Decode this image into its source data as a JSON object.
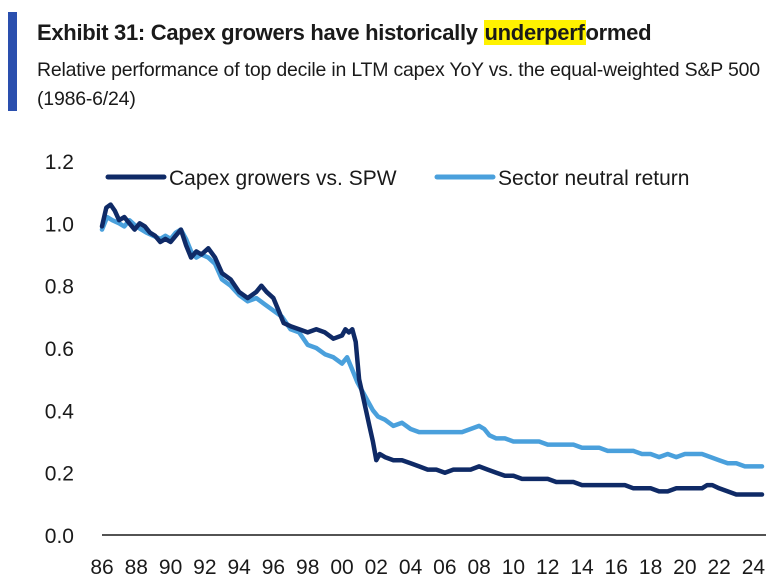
{
  "header": {
    "title_prefix": "Exhibit 31: Capex growers have historically ",
    "title_highlight": "underperf",
    "title_suffix": "ormed",
    "subtitle": "Relative performance of top decile in LTM capex YoY vs. the equal-weighted S&P 500 (1986-6/24)"
  },
  "colors": {
    "accent": "#2a4fae",
    "highlight": "#fff200",
    "series_dark": "#0f2a66",
    "series_light": "#4aa0dc"
  },
  "chart_data": {
    "type": "line",
    "title": "",
    "xlabel": "",
    "ylabel": "",
    "xlim": [
      1986,
      2024.5
    ],
    "ylim": [
      0.0,
      1.2
    ],
    "grid": false,
    "legend": "top",
    "yticks": [
      {
        "value": 0.0,
        "label": "0.0"
      },
      {
        "value": 0.2,
        "label": "0.2"
      },
      {
        "value": 0.4,
        "label": "0.4"
      },
      {
        "value": 0.6,
        "label": "0.6"
      },
      {
        "value": 0.8,
        "label": "0.8"
      },
      {
        "value": 1.0,
        "label": "1.0"
      },
      {
        "value": 1.2,
        "label": "1.2"
      }
    ],
    "xticks": [
      {
        "value": 1986,
        "label": "86"
      },
      {
        "value": 1988,
        "label": "88"
      },
      {
        "value": 1990,
        "label": "90"
      },
      {
        "value": 1992,
        "label": "92"
      },
      {
        "value": 1994,
        "label": "94"
      },
      {
        "value": 1996,
        "label": "96"
      },
      {
        "value": 1998,
        "label": "98"
      },
      {
        "value": 2000,
        "label": "00"
      },
      {
        "value": 2002,
        "label": "02"
      },
      {
        "value": 2004,
        "label": "04"
      },
      {
        "value": 2006,
        "label": "06"
      },
      {
        "value": 2008,
        "label": "08"
      },
      {
        "value": 2010,
        "label": "10"
      },
      {
        "value": 2012,
        "label": "12"
      },
      {
        "value": 2014,
        "label": "14"
      },
      {
        "value": 2016,
        "label": "16"
      },
      {
        "value": 2018,
        "label": "18"
      },
      {
        "value": 2020,
        "label": "20"
      },
      {
        "value": 2022,
        "label": "22"
      },
      {
        "value": 2024,
        "label": "24"
      }
    ],
    "series": [
      {
        "name": "Capex growers vs. SPW",
        "color": "#0f2a66",
        "x": [
          1986.0,
          1986.25,
          1986.5,
          1986.75,
          1987.0,
          1987.3,
          1987.6,
          1987.9,
          1988.2,
          1988.5,
          1988.8,
          1989.1,
          1989.4,
          1989.7,
          1990.0,
          1990.3,
          1990.6,
          1990.9,
          1991.2,
          1991.5,
          1991.8,
          1992.2,
          1992.6,
          1993.0,
          1993.5,
          1994.0,
          1994.5,
          1995.0,
          1995.3,
          1995.6,
          1996.0,
          1996.3,
          1996.6,
          1997.0,
          1997.5,
          1998.0,
          1998.5,
          1999.0,
          1999.5,
          2000.0,
          2000.2,
          2000.4,
          2000.6,
          2000.8,
          2001.0,
          2001.2,
          2001.4,
          2001.6,
          2001.8,
          2002.0,
          2002.2,
          2002.5,
          2003.0,
          2003.5,
          2004.0,
          2004.5,
          2005.0,
          2005.5,
          2006.0,
          2006.5,
          2007.0,
          2007.5,
          2008.0,
          2008.5,
          2009.0,
          2009.5,
          2010.0,
          2010.5,
          2011.0,
          2011.5,
          2012.0,
          2012.5,
          2013.0,
          2013.5,
          2014.0,
          2014.5,
          2015.0,
          2015.5,
          2016.0,
          2016.5,
          2017.0,
          2017.5,
          2018.0,
          2018.5,
          2019.0,
          2019.5,
          2020.0,
          2020.5,
          2021.0,
          2021.3,
          2021.6,
          2022.0,
          2022.5,
          2023.0,
          2023.5,
          2024.0,
          2024.5
        ],
        "values": [
          0.99,
          1.05,
          1.06,
          1.04,
          1.01,
          1.02,
          1.0,
          0.98,
          1.0,
          0.99,
          0.97,
          0.96,
          0.94,
          0.95,
          0.94,
          0.96,
          0.98,
          0.93,
          0.89,
          0.91,
          0.9,
          0.92,
          0.89,
          0.84,
          0.82,
          0.78,
          0.76,
          0.78,
          0.8,
          0.78,
          0.76,
          0.72,
          0.68,
          0.67,
          0.66,
          0.65,
          0.66,
          0.65,
          0.63,
          0.64,
          0.66,
          0.65,
          0.66,
          0.62,
          0.5,
          0.45,
          0.4,
          0.35,
          0.3,
          0.24,
          0.26,
          0.25,
          0.24,
          0.24,
          0.23,
          0.22,
          0.21,
          0.21,
          0.2,
          0.21,
          0.21,
          0.21,
          0.22,
          0.21,
          0.2,
          0.19,
          0.19,
          0.18,
          0.18,
          0.18,
          0.18,
          0.17,
          0.17,
          0.17,
          0.16,
          0.16,
          0.16,
          0.16,
          0.16,
          0.16,
          0.15,
          0.15,
          0.15,
          0.14,
          0.14,
          0.15,
          0.15,
          0.15,
          0.15,
          0.16,
          0.16,
          0.15,
          0.14,
          0.13,
          0.13,
          0.13,
          0.13
        ]
      },
      {
        "name": "Sector neutral return",
        "color": "#4aa0dc",
        "x": [
          1986.0,
          1986.3,
          1986.6,
          1987.0,
          1987.3,
          1987.6,
          1988.0,
          1988.3,
          1988.6,
          1989.0,
          1989.4,
          1989.7,
          1990.0,
          1990.3,
          1990.6,
          1990.9,
          1991.2,
          1991.5,
          1991.8,
          1992.2,
          1992.6,
          1993.0,
          1993.5,
          1994.0,
          1994.5,
          1995.0,
          1995.5,
          1996.0,
          1996.5,
          1997.0,
          1997.5,
          1998.0,
          1998.5,
          1999.0,
          1999.5,
          2000.0,
          2000.3,
          2000.6,
          2000.9,
          2001.2,
          2001.5,
          2001.8,
          2002.1,
          2002.5,
          2003.0,
          2003.5,
          2004.0,
          2004.5,
          2005.0,
          2005.5,
          2006.0,
          2006.5,
          2007.0,
          2007.5,
          2008.0,
          2008.3,
          2008.6,
          2009.0,
          2009.5,
          2010.0,
          2010.5,
          2011.0,
          2011.5,
          2012.0,
          2012.5,
          2013.0,
          2013.5,
          2014.0,
          2014.5,
          2015.0,
          2015.5,
          2016.0,
          2016.5,
          2017.0,
          2017.5,
          2018.0,
          2018.5,
          2019.0,
          2019.5,
          2020.0,
          2020.5,
          2021.0,
          2021.5,
          2022.0,
          2022.5,
          2023.0,
          2023.5,
          2024.0,
          2024.5
        ],
        "values": [
          0.98,
          1.02,
          1.01,
          1.0,
          0.99,
          1.01,
          0.99,
          0.98,
          0.97,
          0.96,
          0.95,
          0.96,
          0.95,
          0.97,
          0.98,
          0.95,
          0.91,
          0.89,
          0.9,
          0.89,
          0.87,
          0.82,
          0.8,
          0.77,
          0.75,
          0.76,
          0.74,
          0.72,
          0.7,
          0.66,
          0.65,
          0.61,
          0.6,
          0.58,
          0.57,
          0.55,
          0.57,
          0.53,
          0.49,
          0.46,
          0.43,
          0.4,
          0.38,
          0.37,
          0.35,
          0.36,
          0.34,
          0.33,
          0.33,
          0.33,
          0.33,
          0.33,
          0.33,
          0.34,
          0.35,
          0.34,
          0.32,
          0.31,
          0.31,
          0.3,
          0.3,
          0.3,
          0.3,
          0.29,
          0.29,
          0.29,
          0.29,
          0.28,
          0.28,
          0.28,
          0.27,
          0.27,
          0.27,
          0.27,
          0.26,
          0.26,
          0.25,
          0.26,
          0.25,
          0.26,
          0.26,
          0.26,
          0.25,
          0.24,
          0.23,
          0.23,
          0.22,
          0.22,
          0.22
        ]
      }
    ]
  }
}
